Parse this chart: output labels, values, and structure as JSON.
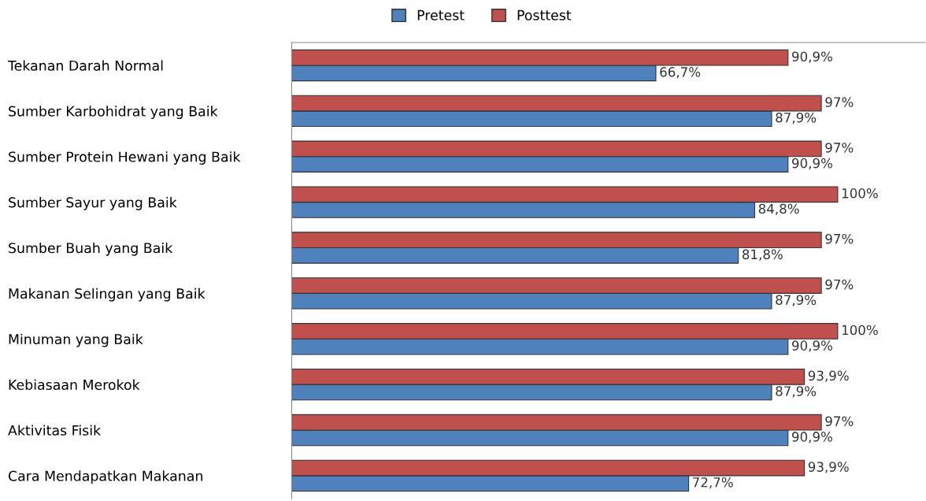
{
  "chart_data": {
    "type": "bar",
    "orientation": "horizontal",
    "categories": [
      "Tekanan Darah Normal",
      "Sumber Karbohidrat yang Baik",
      "Sumber Protein Hewani yang Baik",
      "Sumber Sayur yang Baik",
      "Sumber Buah yang Baik",
      "Makanan Selingan yang Baik",
      "Minuman yang Baik",
      "Kebiasaan Merokok",
      "Aktivitas Fisik",
      "Cara Mendapatkan Makanan"
    ],
    "series": [
      {
        "name": "Pretest",
        "color": "#4f81bd",
        "values": [
          66.7,
          87.9,
          90.9,
          84.8,
          81.8,
          87.9,
          90.9,
          87.9,
          90.9,
          72.7
        ],
        "value_labels": [
          "66,7%",
          "87,9%",
          "90,9%",
          "84,8%",
          "81,8%",
          "87,9%",
          "90,9%",
          "87,9%",
          "90,9%",
          "72,7%"
        ]
      },
      {
        "name": "Posttest",
        "color": "#c0504d",
        "values": [
          90.9,
          97,
          97,
          100,
          97,
          97,
          100,
          93.9,
          97,
          93.9
        ],
        "value_labels": [
          "90,9%",
          "97%",
          "97%",
          "100%",
          "97%",
          "97%",
          "100%",
          "93,9%",
          "97%",
          "93,9%"
        ]
      }
    ],
    "xlim": [
      0,
      116
    ],
    "tick_labels": "y",
    "grid": false,
    "legend": "top"
  }
}
